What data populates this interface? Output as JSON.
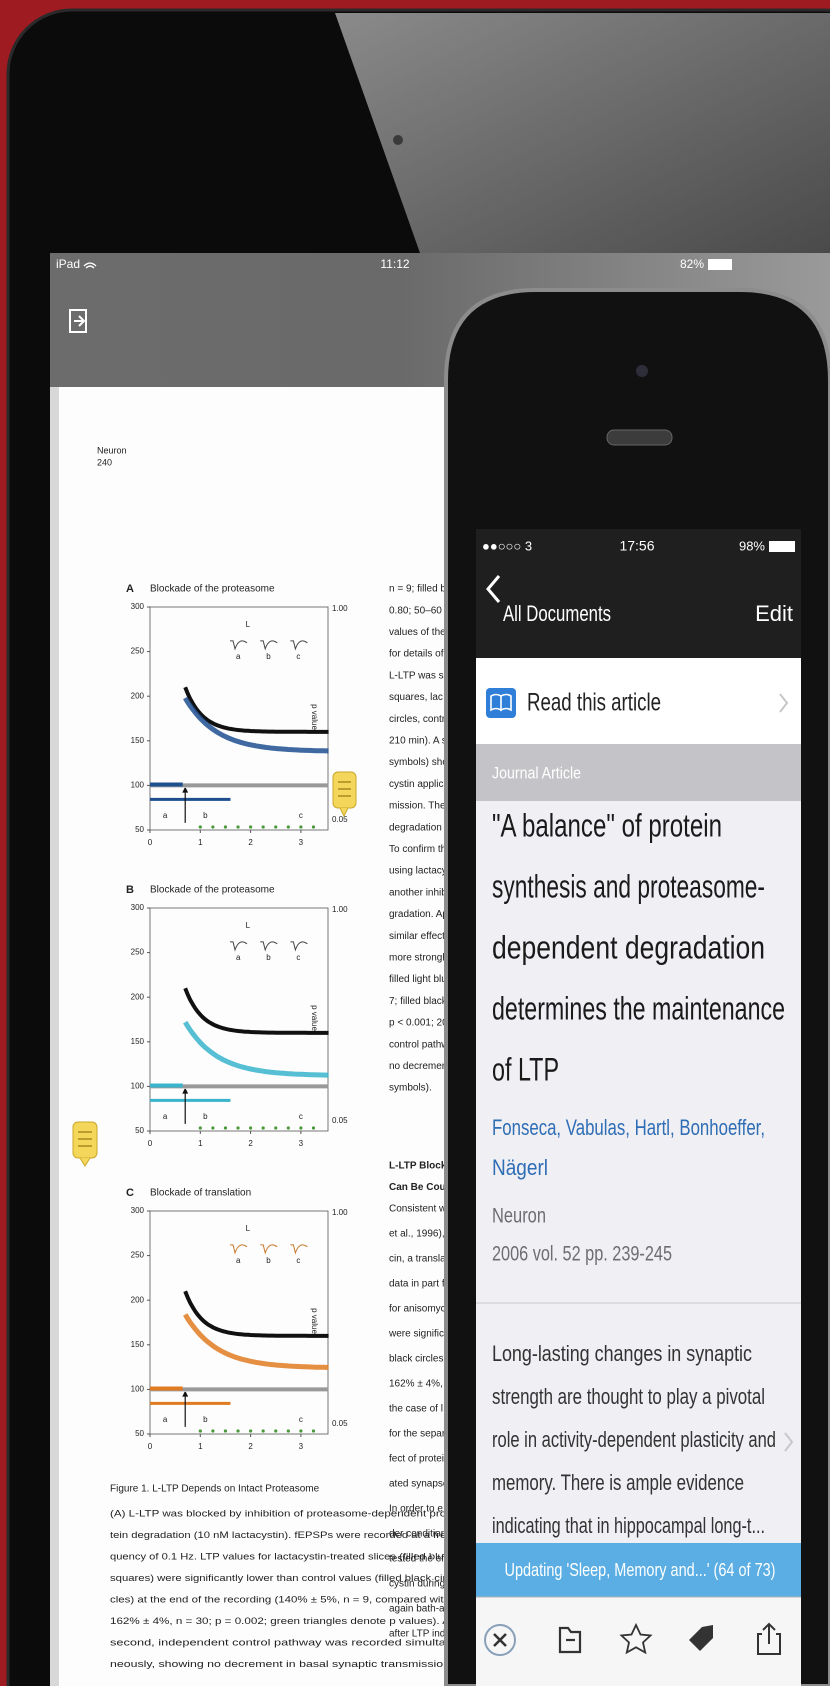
{
  "ipad": {
    "status": {
      "device": "iPad",
      "time": "11:12",
      "battery": "82%"
    }
  },
  "paper": {
    "journal": "Neuron",
    "page": "240",
    "panels": [
      {
        "letter": "A",
        "title": "Blockade of the proteasome",
        "yticks": [
          "300",
          "250",
          "200",
          "150",
          "100",
          "50"
        ],
        "xticks": [
          "0",
          "1",
          "2",
          "3"
        ],
        "p_ticks": [
          "1.00",
          "0.05"
        ],
        "p_label": "p value",
        "inset": [
          "L",
          "a",
          "b",
          "c"
        ],
        "phases": [
          "a",
          "b",
          "c"
        ]
      },
      {
        "letter": "B",
        "title": "Blockade of the proteasome",
        "yticks": [
          "300",
          "250",
          "200",
          "150",
          "100",
          "50"
        ],
        "xticks": [
          "0",
          "1",
          "2",
          "3"
        ],
        "p_ticks": [
          "1.00",
          "0.05"
        ],
        "p_label": "p value",
        "inset": [
          "L",
          "a",
          "b",
          "c"
        ],
        "phases": [
          "a",
          "b",
          "c"
        ]
      },
      {
        "letter": "C",
        "title": "Blockade of translation",
        "yticks": [
          "300",
          "250",
          "200",
          "150",
          "100",
          "50"
        ],
        "xticks": [
          "0",
          "1",
          "2",
          "3"
        ],
        "p_ticks": [
          "1.00",
          "0.05"
        ],
        "p_label": "p value",
        "inset": [
          "L",
          "a",
          "b",
          "c"
        ],
        "phases": [
          "a",
          "b",
          "c"
        ]
      }
    ],
    "caption": {
      "title": "Figure 1. L-LTP Depends on Intact Proteasome",
      "lines": [
        "(A) L-LTP was blocked by inhibition of proteasome-dependent pro-",
        "tein degradation (10 nM lactacystin). fEPSPs were recorded at a fre-",
        "quency of 0.1 Hz. LTP values for lactacystin-treated slices (filled blue",
        "squares) were significantly lower than control values (filled black cir-",
        "cles) at the end of the recording (140% ± 5%, n = 9, compared with",
        "162% ± 4%, n = 30; p = 0.002; green triangles denote p values). A",
        "second, independent control pathway was recorded simulta-",
        "neously, showing no decrement in basal synaptic transmission"
      ]
    },
    "column": {
      "lines": [
        "n = 9; filled bl",
        "0.80; 50–60 m",
        "values of the c",
        "for details of t",
        "L-LTP was s",
        "squares, lac",
        "circles, contro",
        "210 min). A se",
        "symbols) sho",
        "cystin applica",
        "mission. The",
        "degradation",
        "To confirm the",
        "using lactacy",
        "another inhibi",
        "gradation. Ap",
        "similar effect:",
        "more strongly",
        "filled light blu",
        "7; filled black",
        "p < 0.001; 20",
        "control pathw",
        "no decremen",
        "symbols)."
      ],
      "heading": [
        "L-LTP Blocka",
        "Can Be Coun"
      ],
      "lines2": [
        "Consistent w",
        "et al., 1996), v",
        "cin, a translat",
        "data in part f",
        "for anisomyc",
        "were significa",
        "black circles",
        "162% ± 4%,",
        "the case of l",
        "for the separa",
        "fect of protein",
        "ated synapse",
        "In order to e",
        "der conditions",
        "tested the eff",
        "cystin during",
        "again bath-ap",
        "after LTP indu"
      ]
    }
  },
  "phone": {
    "status": {
      "carrier": "●●○○○ 3",
      "time": "17:56",
      "battery": "98%"
    },
    "nav": {
      "back": "All Documents",
      "action": "Edit"
    },
    "read": "Read this article",
    "section": "Journal Article",
    "title_lines": [
      "\"A balance\" of protein",
      "synthesis and proteasome-",
      "dependent degradation",
      "determines the maintenance",
      "of LTP"
    ],
    "authors_lines": [
      "Fonseca, Vabulas, Hartl, Bonhoeffer,",
      "Nägerl"
    ],
    "journal": "Neuron",
    "citation": "2006 vol. 52 pp. 239-245",
    "abstract_lines": [
      "Long-lasting changes in synaptic",
      "strength are thought to play a pivotal",
      "role in activity-dependent plasticity and",
      "memory. There is ample evidence",
      "indicating that in hippocampal long-t..."
    ],
    "progress": "Updating 'Sleep, Memory and...' (64 of 73)"
  }
}
